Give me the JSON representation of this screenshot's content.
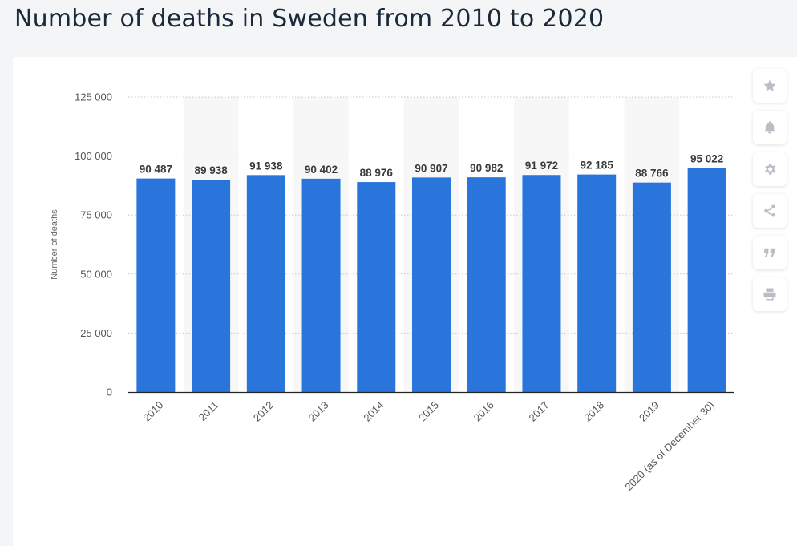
{
  "page": {
    "title": "Number of deaths in Sweden from 2010 to 2020"
  },
  "toolbar": {
    "icons": [
      "star-icon",
      "bell-icon",
      "gear-icon",
      "share-icon",
      "quote-icon",
      "print-icon"
    ]
  },
  "colors": {
    "bar": "#2a75dc",
    "band": "#f7f7f7",
    "grid": "#c7c7c7"
  },
  "chart_data": {
    "type": "bar",
    "title": "",
    "xlabel": "",
    "ylabel": "Number of deaths",
    "ylim": [
      0,
      125000
    ],
    "y_ticks": [
      0,
      25000,
      50000,
      75000,
      100000,
      125000
    ],
    "y_tick_labels": [
      "0",
      "25 000",
      "50 000",
      "75 000",
      "100 000",
      "125 000"
    ],
    "grid": true,
    "categories": [
      "2010",
      "2011",
      "2012",
      "2013",
      "2014",
      "2015",
      "2016",
      "2017",
      "2018",
      "2019",
      "2020 (as of December 30)"
    ],
    "values": [
      90487,
      89938,
      91938,
      90402,
      88976,
      90907,
      90982,
      91972,
      92185,
      88766,
      95022
    ],
    "value_labels": [
      "90 487",
      "89 938",
      "91 938",
      "90 402",
      "88 976",
      "90 907",
      "90 982",
      "91 972",
      "92 185",
      "88 766",
      "95 022"
    ]
  }
}
